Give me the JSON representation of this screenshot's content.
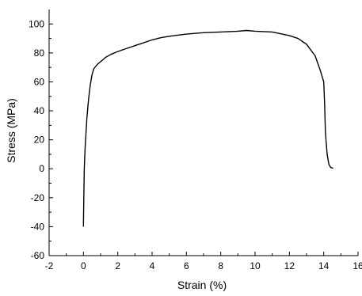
{
  "chart_data": {
    "type": "line",
    "title": "",
    "xlabel": "Strain (%)",
    "ylabel": "Stress (MPa)",
    "xlim": [
      -2,
      16
    ],
    "ylim": [
      -60,
      110
    ],
    "xticks": [
      -2,
      0,
      2,
      4,
      6,
      8,
      10,
      12,
      14,
      16
    ],
    "yticks": [
      -60,
      -40,
      -20,
      0,
      20,
      40,
      60,
      80,
      100
    ],
    "grid": false,
    "legend": "none",
    "line_color": "#000000",
    "series": [
      {
        "x": [
          0.0,
          0.02,
          0.05,
          0.1,
          0.15,
          0.2,
          0.3,
          0.4,
          0.5,
          0.6,
          0.8,
          1.0,
          1.3,
          1.6,
          2.0,
          2.5,
          3.0,
          3.5,
          4.0,
          4.5,
          5.0,
          6.0,
          7.0,
          8.0,
          9.0,
          9.5,
          10.0,
          11.0,
          12.0,
          12.5,
          13.0,
          13.5,
          13.8,
          14.0,
          14.05,
          14.1,
          14.2,
          14.3,
          14.4,
          14.5,
          14.55
        ],
        "y": [
          -40,
          -20,
          0,
          15,
          25,
          35,
          48,
          58,
          65,
          69,
          72,
          74,
          77,
          79,
          81,
          83,
          85,
          87,
          89,
          90.5,
          91.5,
          93,
          94,
          94.5,
          95,
          95.5,
          95,
          94.5,
          92,
          90,
          86,
          78,
          68,
          60,
          45,
          25,
          10,
          3,
          1,
          0.5,
          0.5
        ]
      }
    ]
  }
}
